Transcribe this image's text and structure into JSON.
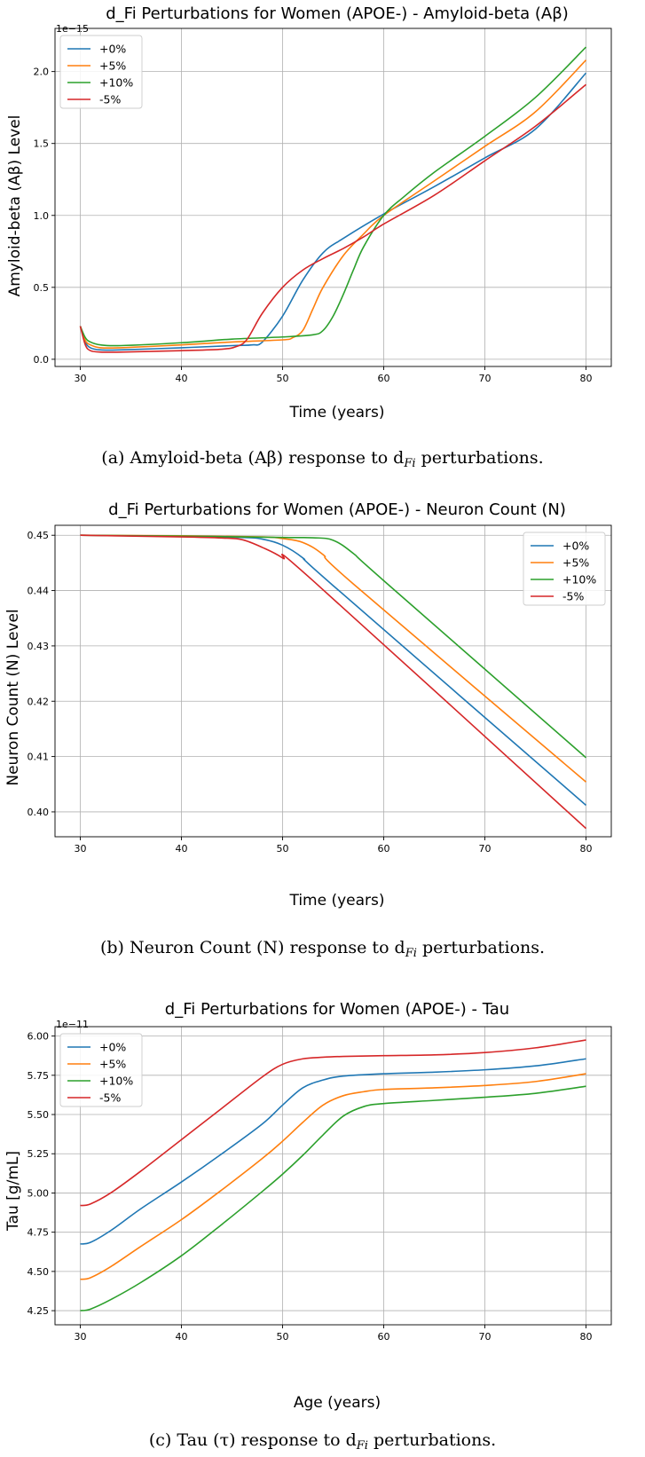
{
  "chart_data": [
    {
      "type": "line",
      "title": "d_Fi Perturbations for Women (APOE-) - Amyloid-beta (Aβ)",
      "xlabel": "Time (years)",
      "ylabel": "Amyloid-beta (Aβ) Level",
      "scale_label": "1e−15",
      "xlim": [
        27.5,
        82.5
      ],
      "ylim": [
        -0.05,
        2.3
      ],
      "xticks": [
        30,
        40,
        50,
        60,
        70,
        80
      ],
      "yticks": [
        0.0,
        0.5,
        1.0,
        1.5,
        2.0
      ],
      "ytick_labels": [
        "0.0",
        "0.5",
        "1.0",
        "1.5",
        "2.0"
      ],
      "legend_position": "upper-left",
      "colors": [
        "#1f77b4",
        "#ff7f0e",
        "#2ca02c",
        "#d62728"
      ],
      "series": [
        {
          "name": "+0%",
          "x": [
            30,
            30.5,
            31,
            32,
            34,
            40,
            45,
            47,
            48,
            50,
            52,
            54,
            56,
            60,
            65,
            70,
            75,
            80
          ],
          "y": [
            0.23,
            0.12,
            0.08,
            0.065,
            0.065,
            0.08,
            0.095,
            0.1,
            0.12,
            0.3,
            0.55,
            0.74,
            0.84,
            1.01,
            1.2,
            1.4,
            1.6,
            1.99
          ]
        },
        {
          "name": "+5%",
          "x": [
            30,
            30.5,
            31,
            32,
            34,
            40,
            45,
            50,
            51,
            52,
            53,
            54,
            56,
            58,
            60,
            65,
            70,
            75,
            80
          ],
          "y": [
            0.23,
            0.13,
            0.1,
            0.08,
            0.08,
            0.1,
            0.12,
            0.135,
            0.15,
            0.2,
            0.35,
            0.5,
            0.72,
            0.87,
            1.0,
            1.24,
            1.48,
            1.72,
            2.08
          ]
        },
        {
          "name": "+10%",
          "x": [
            30,
            30.5,
            31,
            32,
            34,
            40,
            45,
            50,
            53,
            54,
            55,
            56,
            57,
            58,
            60,
            62,
            65,
            70,
            75,
            80
          ],
          "y": [
            0.23,
            0.15,
            0.12,
            0.1,
            0.095,
            0.115,
            0.14,
            0.155,
            0.17,
            0.2,
            0.3,
            0.45,
            0.62,
            0.78,
            1.0,
            1.13,
            1.3,
            1.55,
            1.82,
            2.17
          ]
        },
        {
          "name": "-5%",
          "x": [
            30,
            30.5,
            31,
            32,
            34,
            40,
            44,
            45.5,
            46.5,
            48,
            50,
            52,
            54,
            56,
            58,
            60,
            65,
            70,
            75,
            80
          ],
          "y": [
            0.23,
            0.1,
            0.06,
            0.05,
            0.05,
            0.06,
            0.07,
            0.09,
            0.14,
            0.32,
            0.5,
            0.62,
            0.7,
            0.77,
            0.85,
            0.94,
            1.14,
            1.38,
            1.62,
            1.91
          ]
        }
      ]
    },
    {
      "type": "line",
      "title": "d_Fi Perturbations for Women (APOE-) - Neuron Count (N)",
      "xlabel": "Time (years)",
      "ylabel": "Neuron Count (N) Level",
      "xlim": [
        27.5,
        82.5
      ],
      "ylim": [
        0.3955,
        0.4518
      ],
      "xticks": [
        30,
        40,
        50,
        60,
        70,
        80
      ],
      "yticks": [
        0.4,
        0.41,
        0.42,
        0.43,
        0.44,
        0.45
      ],
      "ytick_labels": [
        "0.40",
        "0.41",
        "0.42",
        "0.43",
        "0.44",
        "0.45"
      ],
      "legend_position": "upper-right",
      "colors": [
        "#1f77b4",
        "#ff7f0e",
        "#2ca02c",
        "#d62728"
      ],
      "series": [
        {
          "name": "+0%",
          "x": [
            30,
            40,
            46,
            48,
            50,
            52,
            55,
            80
          ],
          "y": [
            0.45,
            0.4498,
            0.4496,
            0.4493,
            0.4482,
            0.4459,
            0.4409,
            0.4012
          ]
        },
        {
          "name": "+5%",
          "x": [
            30,
            40,
            48,
            50,
            52,
            54,
            57,
            80
          ],
          "y": [
            0.45,
            0.4499,
            0.4497,
            0.4494,
            0.4487,
            0.4465,
            0.4412,
            0.4054
          ]
        },
        {
          "name": "+10%",
          "x": [
            30,
            40,
            50,
            53,
            55,
            57,
            60,
            80
          ],
          "y": [
            0.45,
            0.44985,
            0.4496,
            0.44955,
            0.4491,
            0.4467,
            0.4418,
            0.4098
          ]
        },
        {
          "name": "-5%",
          "x": [
            30,
            40,
            44,
            46,
            48,
            50,
            53,
            80
          ],
          "y": [
            0.45,
            0.4497,
            0.4495,
            0.4492,
            0.4478,
            0.4459,
            0.4418,
            0.397
          ]
        }
      ]
    },
    {
      "type": "line",
      "title": "d_Fi Perturbations for Women (APOE-) - Tau",
      "xlabel": "Age (years)",
      "ylabel": "Tau [g/mL]",
      "scale_label": "1e−11",
      "xlim": [
        27.5,
        82.5
      ],
      "ylim": [
        4.16,
        6.06
      ],
      "xticks": [
        30,
        40,
        50,
        60,
        70,
        80
      ],
      "yticks": [
        4.25,
        4.5,
        4.75,
        5.0,
        5.25,
        5.5,
        5.75,
        6.0
      ],
      "ytick_labels": [
        "4.25",
        "4.50",
        "4.75",
        "5.00",
        "5.25",
        "5.50",
        "5.75",
        "6.00"
      ],
      "legend_position": "upper-left",
      "colors": [
        "#1f77b4",
        "#ff7f0e",
        "#2ca02c",
        "#d62728"
      ],
      "series": [
        {
          "name": "+0%",
          "x": [
            30,
            31,
            33,
            36,
            40,
            44,
            48,
            50,
            52,
            54,
            56,
            60,
            65,
            70,
            75,
            80
          ],
          "y": [
            4.675,
            4.685,
            4.76,
            4.9,
            5.07,
            5.25,
            5.44,
            5.56,
            5.67,
            5.72,
            5.745,
            5.76,
            5.77,
            5.785,
            5.81,
            5.855
          ]
        },
        {
          "name": "+5%",
          "x": [
            30,
            31,
            33,
            36,
            40,
            44,
            48,
            50,
            52,
            54,
            56,
            58,
            60,
            65,
            70,
            75,
            80
          ],
          "y": [
            4.45,
            4.46,
            4.53,
            4.66,
            4.83,
            5.02,
            5.22,
            5.33,
            5.45,
            5.56,
            5.62,
            5.645,
            5.66,
            5.67,
            5.685,
            5.71,
            5.76
          ]
        },
        {
          "name": "+10%",
          "x": [
            30,
            31,
            33,
            36,
            40,
            44,
            48,
            50,
            52,
            54,
            56,
            58,
            60,
            65,
            70,
            75,
            80
          ],
          "y": [
            4.25,
            4.26,
            4.32,
            4.43,
            4.6,
            4.8,
            5.01,
            5.12,
            5.24,
            5.37,
            5.49,
            5.55,
            5.57,
            5.59,
            5.61,
            5.635,
            5.68
          ]
        },
        {
          "name": "-5%",
          "x": [
            30,
            31,
            33,
            36,
            40,
            44,
            48,
            50,
            52,
            54,
            56,
            60,
            65,
            70,
            75,
            80
          ],
          "y": [
            4.92,
            4.93,
            5.0,
            5.14,
            5.34,
            5.54,
            5.74,
            5.82,
            5.855,
            5.865,
            5.87,
            5.875,
            5.88,
            5.895,
            5.925,
            5.975
          ]
        }
      ]
    }
  ],
  "captions": [
    "(a) Amyloid-beta (Aβ) response to d",
    "(b) Neuron Count (N) response to d",
    "(c) Tau (τ) response to d"
  ],
  "caption_subscript": "Fi",
  "caption_suffix": " perturbations."
}
